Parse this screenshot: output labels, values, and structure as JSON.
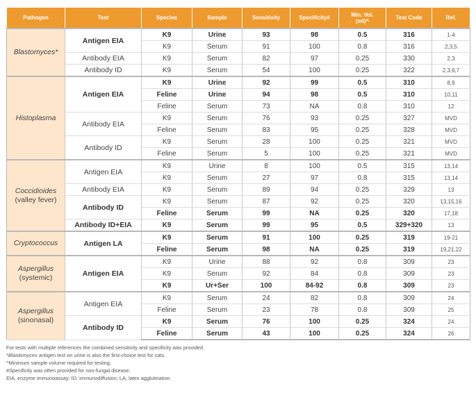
{
  "headers": [
    "Pathogen",
    "Test",
    "Species",
    "Sample",
    "Sensitivity",
    "Specificity#",
    "Min. Vol.\n(ml)^",
    "Test Code",
    "Ref."
  ],
  "groups": [
    {
      "pathogen": "Blastomyces*",
      "pathogen_sub": "",
      "tests": [
        {
          "name": "Antigen EIA",
          "bold": true,
          "rows": [
            {
              "species": "K9",
              "sample": "Urine",
              "sens": "93",
              "spec": "98",
              "vol": "0.5",
              "code": "316",
              "ref": "1-4",
              "bold": true
            },
            {
              "species": "K9",
              "sample": "Serum",
              "sens": "91",
              "spec": "100",
              "vol": "0.8",
              "code": "316",
              "ref": "2,3,5",
              "bold": false
            }
          ]
        },
        {
          "name": "Antibody EIA",
          "bold": false,
          "rows": [
            {
              "species": "K9",
              "sample": "Serum",
              "sens": "82",
              "spec": "97",
              "vol": "0.25",
              "code": "330",
              "ref": "2,3",
              "bold": false
            }
          ]
        },
        {
          "name": "Antibody ID",
          "bold": false,
          "rows": [
            {
              "species": "K9",
              "sample": "Serum",
              "sens": "54",
              "spec": "100",
              "vol": "0.25",
              "code": "322",
              "ref": "2,3,6,7",
              "bold": false
            }
          ]
        }
      ]
    },
    {
      "pathogen": "Histoplasma",
      "pathogen_sub": "",
      "tests": [
        {
          "name": "Antigen EIA",
          "bold": true,
          "rows": [
            {
              "species": "K9",
              "sample": "Urine",
              "sens": "92",
              "spec": "99",
              "vol": "0.5",
              "code": "310",
              "ref": "8,9",
              "bold": true
            },
            {
              "species": "Feline",
              "sample": "Urine",
              "sens": "94",
              "spec": "98",
              "vol": "0.5",
              "code": "310",
              "ref": "10,11",
              "bold": true
            },
            {
              "species": "Feline",
              "sample": "Serum",
              "sens": "73",
              "spec": "NA",
              "vol": "0.8",
              "code": "310",
              "ref": "12",
              "bold": false
            }
          ]
        },
        {
          "name": "Antibody EIA",
          "bold": false,
          "rows": [
            {
              "species": "K9",
              "sample": "Serum",
              "sens": "76",
              "spec": "93",
              "vol": "0.25",
              "code": "327",
              "ref": "MVD",
              "bold": false
            },
            {
              "species": "Feline",
              "sample": "Serum",
              "sens": "83",
              "spec": "95",
              "vol": "0.25",
              "code": "328",
              "ref": "MVD",
              "bold": false
            }
          ]
        },
        {
          "name": "Antibody ID",
          "bold": false,
          "rows": [
            {
              "species": "K9",
              "sample": "Serum",
              "sens": "28",
              "spec": "100",
              "vol": "0.25",
              "code": "321",
              "ref": "MVD",
              "bold": false
            },
            {
              "species": "Feline",
              "sample": "Serum",
              "sens": "5",
              "spec": "100",
              "vol": "0.25",
              "code": "321",
              "ref": "MVD",
              "bold": false
            }
          ]
        }
      ]
    },
    {
      "pathogen": "Coccidioides",
      "pathogen_sub": "(valley fever)",
      "tests": [
        {
          "name": "Antigen EIA",
          "bold": false,
          "rows": [
            {
              "species": "K9",
              "sample": "Urine",
              "sens": "8",
              "spec": "100",
              "vol": "0.5",
              "code": "315",
              "ref": "13,14",
              "bold": false
            },
            {
              "species": "K9",
              "sample": "Serum",
              "sens": "27",
              "spec": "97",
              "vol": "0.8",
              "code": "315",
              "ref": "13,14",
              "bold": false
            }
          ]
        },
        {
          "name": "Antibody EIA",
          "bold": false,
          "rows": [
            {
              "species": "K9",
              "sample": "Serum",
              "sens": "89",
              "spec": "94",
              "vol": "0.25",
              "code": "329",
              "ref": "13",
              "bold": false
            }
          ]
        },
        {
          "name": "Antibody ID",
          "bold": true,
          "rows": [
            {
              "species": "K9",
              "sample": "Serum",
              "sens": "87",
              "spec": "92",
              "vol": "0.25",
              "code": "320",
              "ref": "13,15,16",
              "bold": false
            },
            {
              "species": "Feline",
              "sample": "Serum",
              "sens": "99",
              "spec": "NA",
              "vol": "0.25",
              "code": "320",
              "ref": "17,18",
              "bold": true
            }
          ]
        },
        {
          "name": "Antibody ID+EIA",
          "bold": true,
          "rows": [
            {
              "species": "K9",
              "sample": "Serum",
              "sens": "99",
              "spec": "95",
              "vol": "0.5",
              "code": "329+320",
              "ref": "13",
              "bold": true
            }
          ]
        }
      ]
    },
    {
      "pathogen": "Cryptococcus",
      "pathogen_sub": "",
      "tests": [
        {
          "name": "Antigen LA",
          "bold": true,
          "rows": [
            {
              "species": "K9",
              "sample": "Serum",
              "sens": "91",
              "spec": "100",
              "vol": "0.25",
              "code": "319",
              "ref": "19-21",
              "bold": true
            },
            {
              "species": "Feline",
              "sample": "Serum",
              "sens": "98",
              "spec": "NA",
              "vol": "0.25",
              "code": "319",
              "ref": "19,21,22",
              "bold": true
            }
          ]
        }
      ]
    },
    {
      "pathogen": "Aspergillus",
      "pathogen_sub": "(systemic)",
      "tests": [
        {
          "name": "Antigen EIA",
          "bold": true,
          "rows": [
            {
              "species": "K9",
              "sample": "Urine",
              "sens": "88",
              "spec": "92",
              "vol": "0.8",
              "code": "309",
              "ref": "23",
              "bold": false
            },
            {
              "species": "K9",
              "sample": "Serum",
              "sens": "92",
              "spec": "84",
              "vol": "0.8",
              "code": "309",
              "ref": "23",
              "bold": false
            },
            {
              "species": "K9",
              "sample": "Ur+Ser",
              "sens": "100",
              "spec": "84-92",
              "vol": "0.8",
              "code": "309",
              "ref": "23",
              "bold": true
            }
          ]
        }
      ]
    },
    {
      "pathogen": "Aspergillus",
      "pathogen_sub": "(sinonasal)",
      "tests": [
        {
          "name": "Antigen EIA",
          "bold": false,
          "rows": [
            {
              "species": "K9",
              "sample": "Serum",
              "sens": "24",
              "spec": "82",
              "vol": "0.8",
              "code": "309",
              "ref": "24",
              "bold": false
            },
            {
              "species": "Feline",
              "sample": "Serum",
              "sens": "23",
              "spec": "78",
              "vol": "0.8",
              "code": "309",
              "ref": "25",
              "bold": false
            }
          ]
        },
        {
          "name": "Antibody ID",
          "bold": true,
          "rows": [
            {
              "species": "K9",
              "sample": "Serum",
              "sens": "76",
              "spec": "100",
              "vol": "0.25",
              "code": "324",
              "ref": "24",
              "bold": true
            },
            {
              "species": "Feline",
              "sample": "Serum",
              "sens": "43",
              "spec": "100",
              "vol": "0.25",
              "code": "324",
              "ref": "26",
              "bold": true
            }
          ]
        }
      ]
    }
  ],
  "footnotes": [
    "For tests with multiple references the combined sensitivity and specificity was provided.",
    "*Blastomyces antigen test on urine is also the first-choice test for cats.",
    "^Minimum sample volume required for testing.",
    "#Specificity was often provided for non-fungal disease.",
    "EIA, enzyme immunoassay; ID, immunodiffusion; LA, latex agglutination"
  ]
}
